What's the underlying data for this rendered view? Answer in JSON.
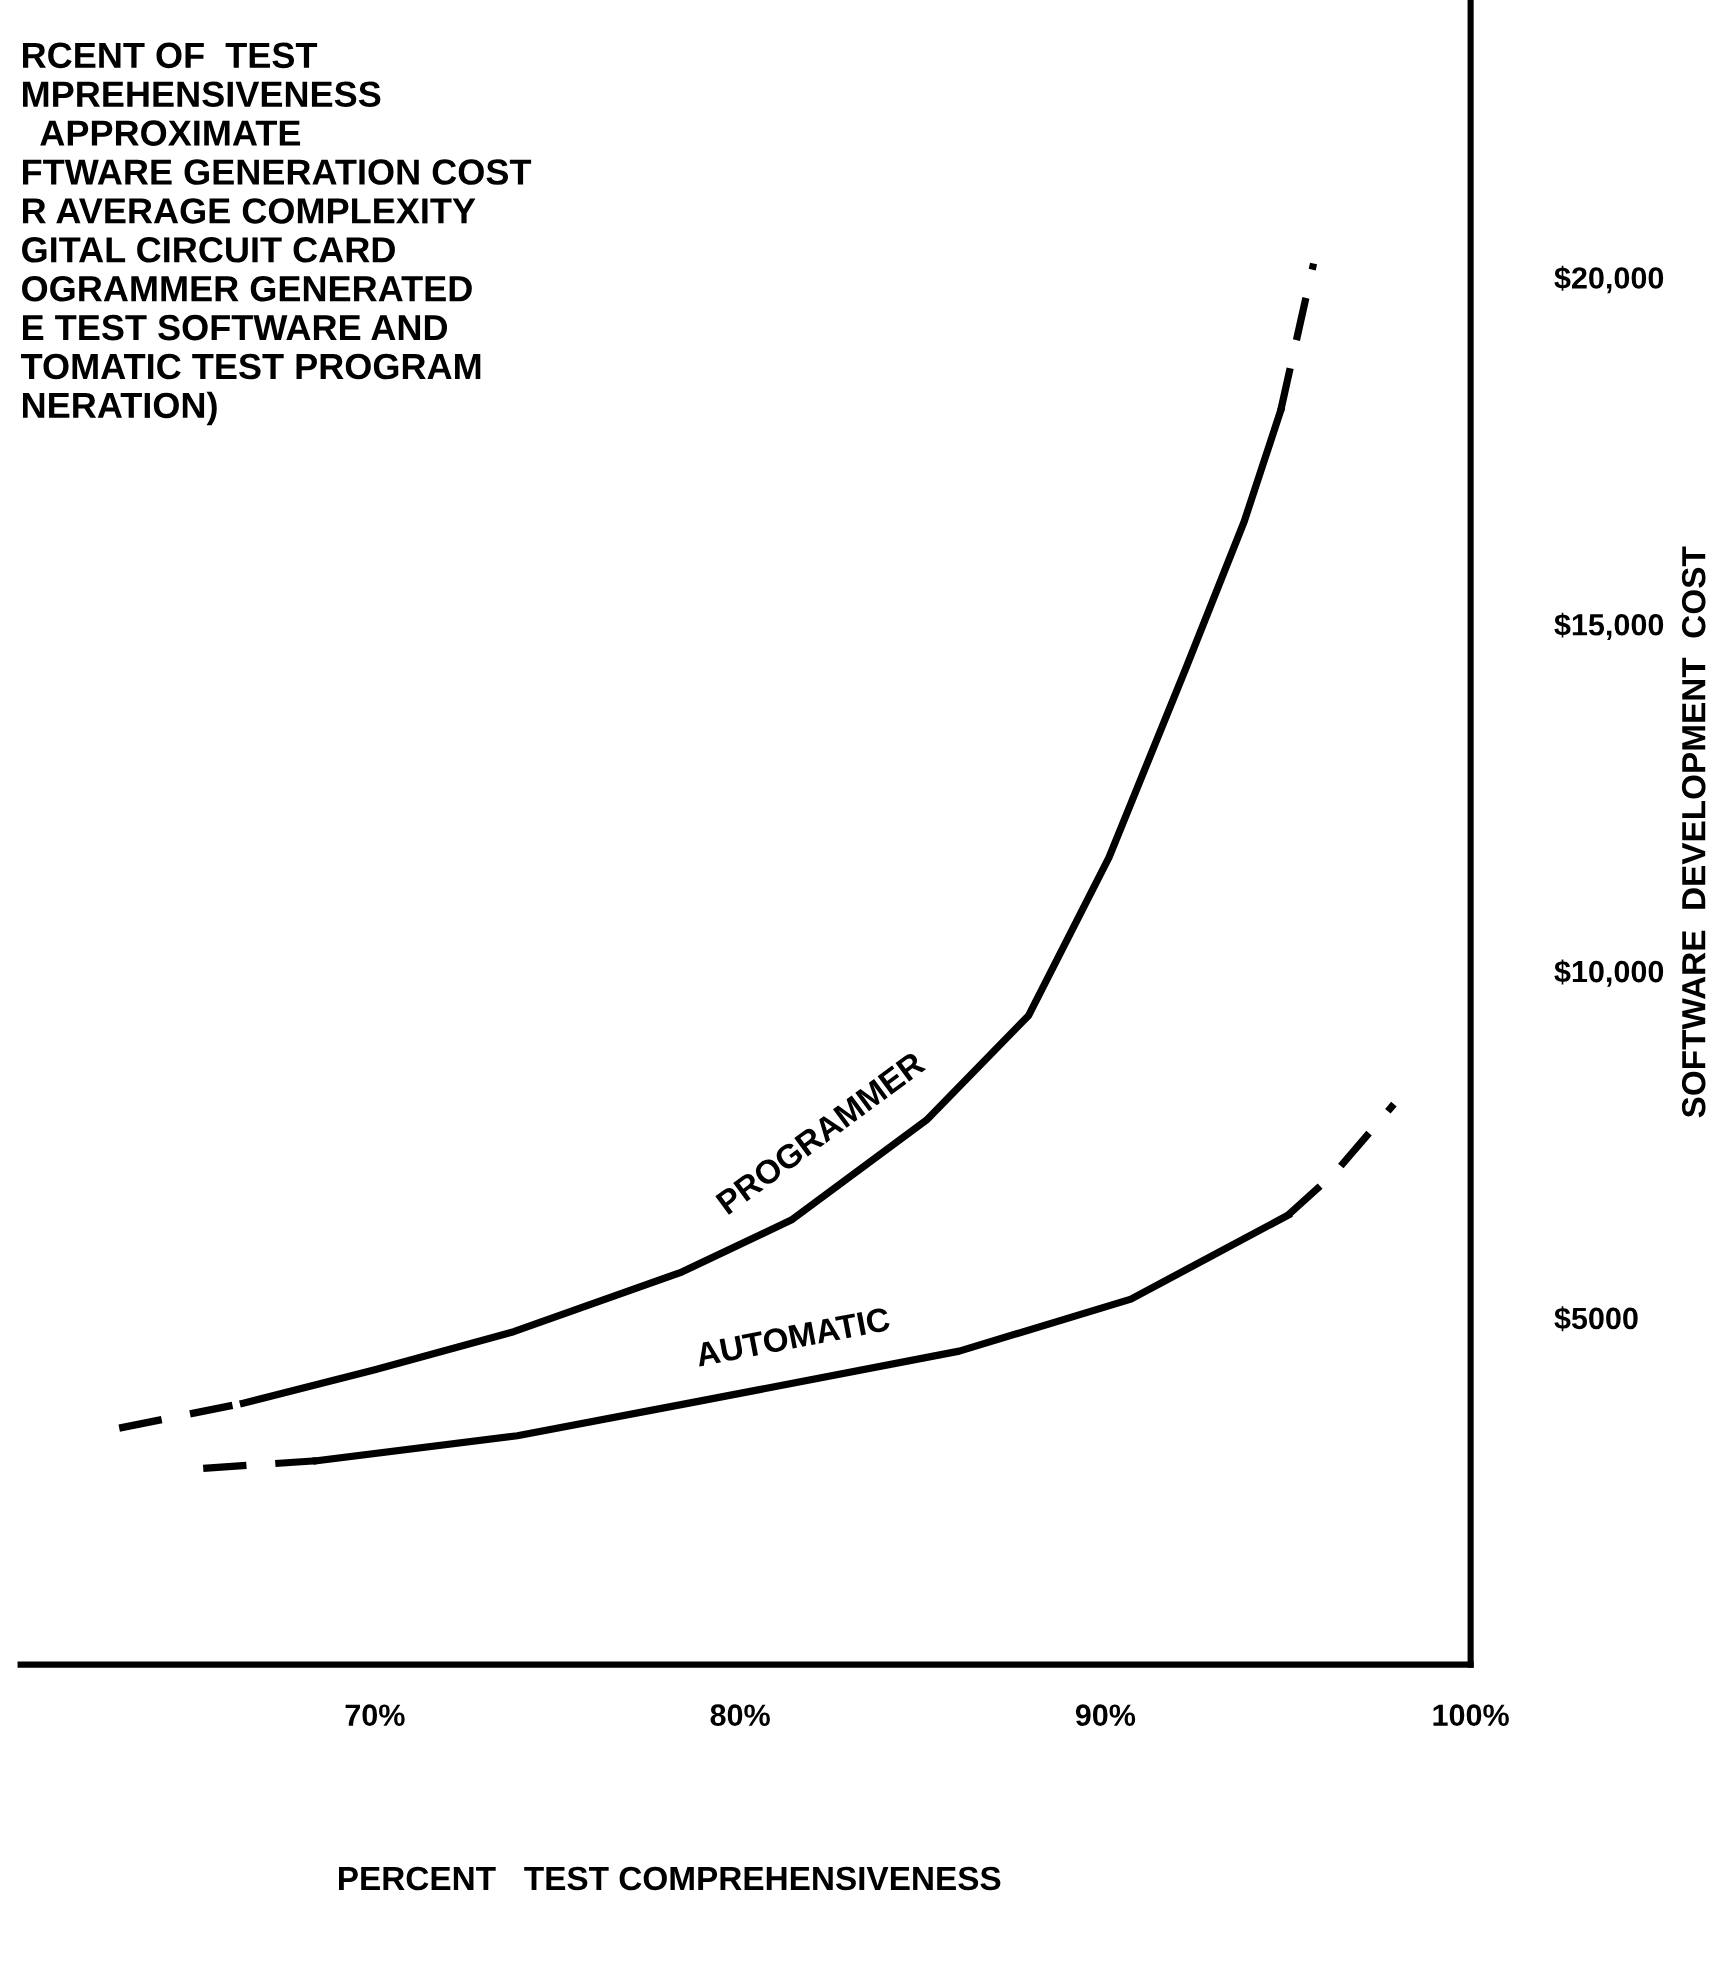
{
  "chart_data": {
    "type": "line",
    "title": "RCENT OF  TEST\nMPREHENSIVENESS\n  APPROXIMATE\nFTWARE GENERATION COST\nR AVERAGE COMPLEXITY\nGITAL CIRCUIT CARD\nOGRAMMER GENERATED\nE TEST SOFTWARE AND\nTOMATIC TEST PROGRAM\nNERATION)",
    "annotations": [
      "PERCENT   TEST COMPREHENSIVENESS"
    ],
    "ylabel": "SOFTWARE  DEVELOPMENT  COST",
    "series": [
      {
        "name": "PROGRAMMER",
        "color": "#000000",
        "line_style": "solid",
        "x": [
          66.4,
          70.0,
          73.8,
          78.4,
          81.4,
          85.1,
          87.9,
          90.1,
          92.2,
          93.8,
          94.8
        ],
        "values": [
          3770,
          4250,
          4800,
          5660,
          6410,
          7850,
          9360,
          11640,
          14360,
          16480,
          18080
        ]
      },
      {
        "color": "#000000",
        "line_style": "dashed",
        "x": [
          63.0,
          66.4
        ],
        "values": [
          3410,
          3770
        ]
      },
      {
        "color": "#000000",
        "line_style": "dashed",
        "x": [
          94.8,
          95.7
        ],
        "values": [
          18080,
          20200
        ]
      },
      {
        "name": "AUTOMATIC",
        "color": "#000000",
        "line_style": "solid",
        "x": [
          68.4,
          73.9,
          78.6,
          86.0,
          90.7,
          95.0
        ],
        "values": [
          2940,
          3300,
          3770,
          4520,
          5270,
          6480
        ]
      },
      {
        "color": "#000000",
        "line_style": "dashed",
        "x": [
          65.3,
          68.4
        ],
        "values": [
          2830,
          2940
        ]
      },
      {
        "color": "#000000",
        "line_style": "dashed",
        "x": [
          95.0,
          96.3,
          97.9
        ],
        "values": [
          6480,
          7100,
          8080
        ]
      }
    ],
    "xlim": [
      60.3,
      100
    ],
    "ylim": [
      0,
      24000
    ],
    "xticks": [
      {
        "value": 70,
        "label": "70%"
      },
      {
        "value": 80,
        "label": "80%"
      },
      {
        "value": 90,
        "label": "90%"
      },
      {
        "value": 100,
        "label": "100%"
      }
    ],
    "yticks": [
      {
        "value": 5000,
        "label": "$5000"
      },
      {
        "value": 10000,
        "label": "$10,000"
      },
      {
        "value": 15000,
        "label": "$15,000"
      },
      {
        "value": 20000,
        "label": "$20,000"
      }
    ],
    "grid": false,
    "legend": false,
    "marker": "none"
  }
}
